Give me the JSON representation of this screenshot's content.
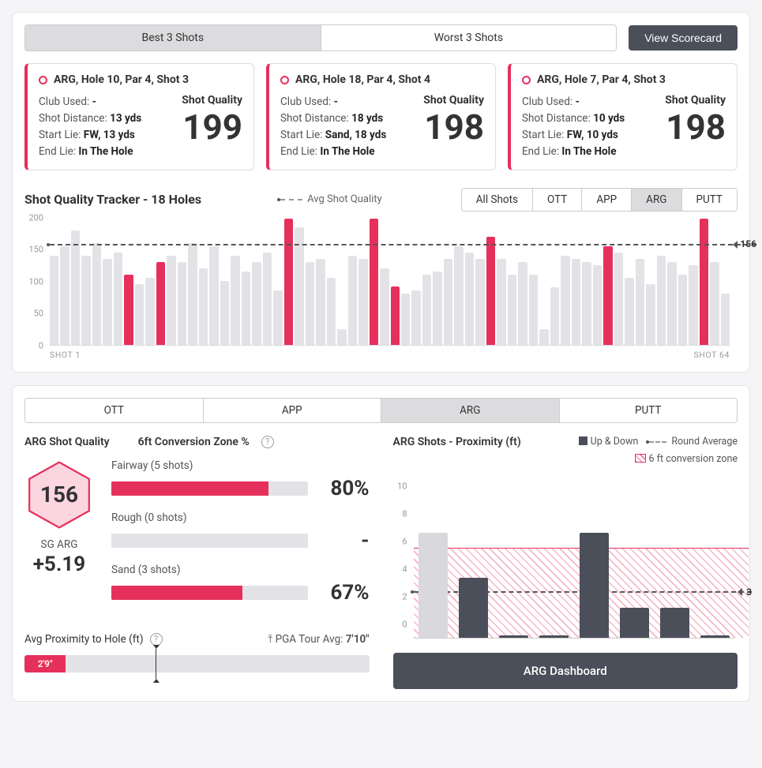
{
  "colors": {
    "accent": "#e6305c",
    "dark": "#4a4f5a",
    "muted": "#e3e3e7"
  },
  "top": {
    "tabs": [
      "Best 3 Shots",
      "Worst 3 Shots"
    ],
    "active_tab": 0,
    "scorecard_btn": "View Scorecard"
  },
  "cards": [
    {
      "title": "ARG, Hole 10, Par 4, Shot 3",
      "club": "-",
      "distance": "13 yds",
      "start": "FW, 13 yds",
      "end": "In The Hole",
      "sq": 199
    },
    {
      "title": "ARG, Hole 18, Par 4, Shot 4",
      "club": "-",
      "distance": "18 yds",
      "start": "Sand, 18 yds",
      "end": "In The Hole",
      "sq": 198
    },
    {
      "title": "ARG, Hole 7, Par 4, Shot 3",
      "club": "-",
      "distance": "10 yds",
      "start": "FW, 10 yds",
      "end": "In The Hole",
      "sq": 198
    }
  ],
  "card_labels": {
    "club": "Club Used: ",
    "dist": "Shot Distance: ",
    "start": "Start Lie: ",
    "end": "End Lie: ",
    "sq": "Shot Quality"
  },
  "tracker": {
    "title": "Shot Quality Tracker - 18 Holes",
    "legend_avg": "Avg Shot Quality",
    "tabs": [
      "All Shots",
      "OTT",
      "APP",
      "ARG",
      "PUTT"
    ],
    "active_tab": 3,
    "ymax": 200,
    "yticks": [
      0,
      50,
      100,
      150,
      200
    ],
    "avg": 156,
    "x_first": "SHOT 1",
    "x_last": "SHOT 64",
    "bars": [
      {
        "v": 140,
        "hl": 0
      },
      {
        "v": 155,
        "hl": 0
      },
      {
        "v": 180,
        "hl": 0
      },
      {
        "v": 140,
        "hl": 0
      },
      {
        "v": 160,
        "hl": 0
      },
      {
        "v": 135,
        "hl": 0
      },
      {
        "v": 145,
        "hl": 0
      },
      {
        "v": 110,
        "hl": 1
      },
      {
        "v": 95,
        "hl": 0
      },
      {
        "v": 105,
        "hl": 0
      },
      {
        "v": 130,
        "hl": 1
      },
      {
        "v": 140,
        "hl": 0
      },
      {
        "v": 130,
        "hl": 0
      },
      {
        "v": 160,
        "hl": 0
      },
      {
        "v": 120,
        "hl": 0
      },
      {
        "v": 155,
        "hl": 0
      },
      {
        "v": 100,
        "hl": 0
      },
      {
        "v": 140,
        "hl": 0
      },
      {
        "v": 115,
        "hl": 0
      },
      {
        "v": 130,
        "hl": 0
      },
      {
        "v": 145,
        "hl": 0
      },
      {
        "v": 85,
        "hl": 0
      },
      {
        "v": 198,
        "hl": 1
      },
      {
        "v": 185,
        "hl": 0
      },
      {
        "v": 130,
        "hl": 0
      },
      {
        "v": 135,
        "hl": 0
      },
      {
        "v": 105,
        "hl": 0
      },
      {
        "v": 25,
        "hl": 0
      },
      {
        "v": 140,
        "hl": 0
      },
      {
        "v": 135,
        "hl": 0
      },
      {
        "v": 199,
        "hl": 1
      },
      {
        "v": 120,
        "hl": 0
      },
      {
        "v": 92,
        "hl": 1
      },
      {
        "v": 80,
        "hl": 0
      },
      {
        "v": 85,
        "hl": 0
      },
      {
        "v": 110,
        "hl": 0
      },
      {
        "v": 115,
        "hl": 0
      },
      {
        "v": 135,
        "hl": 0
      },
      {
        "v": 155,
        "hl": 0
      },
      {
        "v": 145,
        "hl": 0
      },
      {
        "v": 135,
        "hl": 0
      },
      {
        "v": 170,
        "hl": 1
      },
      {
        "v": 135,
        "hl": 0
      },
      {
        "v": 110,
        "hl": 0
      },
      {
        "v": 130,
        "hl": 0
      },
      {
        "v": 110,
        "hl": 0
      },
      {
        "v": 25,
        "hl": 0
      },
      {
        "v": 90,
        "hl": 0
      },
      {
        "v": 140,
        "hl": 0
      },
      {
        "v": 135,
        "hl": 0
      },
      {
        "v": 130,
        "hl": 0
      },
      {
        "v": 125,
        "hl": 0
      },
      {
        "v": 155,
        "hl": 1
      },
      {
        "v": 145,
        "hl": 0
      },
      {
        "v": 105,
        "hl": 0
      },
      {
        "v": 135,
        "hl": 0
      },
      {
        "v": 95,
        "hl": 0
      },
      {
        "v": 140,
        "hl": 0
      },
      {
        "v": 130,
        "hl": 0
      },
      {
        "v": 110,
        "hl": 0
      },
      {
        "v": 125,
        "hl": 0
      },
      {
        "v": 198,
        "hl": 1
      },
      {
        "v": 130,
        "hl": 0
      },
      {
        "v": 80,
        "hl": 0
      }
    ]
  },
  "lower": {
    "tabs": [
      "OTT",
      "APP",
      "ARG",
      "PUTT"
    ],
    "active_tab": 2,
    "left_title": "ARG Shot Quality",
    "conv_title": "6ft Conversion Zone %",
    "hex_value": 156,
    "sg_label": "SG ARG",
    "sg_value": "+5.19",
    "conv": [
      {
        "label": "Fairway (5 shots)",
        "pct": 80,
        "display": "80%"
      },
      {
        "label": "Rough (0 shots)",
        "pct": 0,
        "display": "-"
      },
      {
        "label": "Sand (3 shots)",
        "pct": 67,
        "display": "67%"
      }
    ],
    "prox_title": "Avg Proximity to Hole (ft)",
    "pga_label": "PGA Tour Avg:",
    "pga_val": "7'10\"",
    "prox_value": "2'9\"",
    "prox_pct": 12,
    "prox_marker_pct": 38
  },
  "rchart": {
    "title": "ARG Shots - Proximity (ft)",
    "legend_updown": "Up & Down",
    "legend_ravg": "Round Average",
    "legend_zone": "6 ft conversion zone",
    "ymax": 11,
    "yticks": [
      0,
      2,
      4,
      6,
      8,
      10
    ],
    "zone_top": 6,
    "ravg": 3,
    "bars": [
      {
        "v": 7,
        "up": 0
      },
      {
        "v": 4,
        "up": 1
      },
      {
        "v": 0.1,
        "up": 1
      },
      {
        "v": 0.1,
        "up": 1
      },
      {
        "v": 7,
        "up": 1
      },
      {
        "v": 2,
        "up": 1
      },
      {
        "v": 2,
        "up": 1
      },
      {
        "v": 0.1,
        "up": 1
      }
    ],
    "dash_btn": "ARG Dashboard"
  }
}
